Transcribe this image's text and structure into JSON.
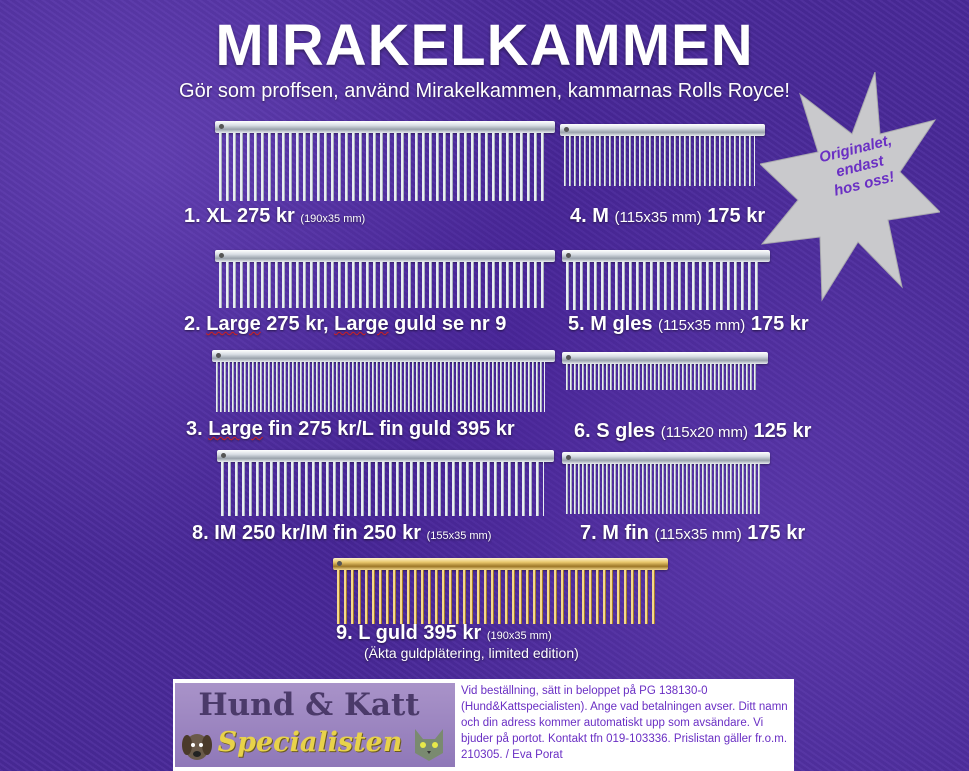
{
  "title": "MIRAKELKAMMEN",
  "subtitle": "Gör som proffsen, använd Mirakelkammen, kammarnas Rolls Royce!",
  "badge": {
    "text_lines": [
      "Originalet,",
      "endast",
      "hos oss!"
    ],
    "fill_color": "#c9c9cc",
    "text_color": "#6a2fc4"
  },
  "products": {
    "p1": {
      "name": "1. XL",
      "price": "275 kr",
      "size": "(190x35 mm)"
    },
    "p4": {
      "name": "4. M",
      "size": "(115x35 mm)",
      "price": "175 kr"
    },
    "p2": {
      "text_a": "2. ",
      "text_b": "Large",
      "text_c": " 275 kr, ",
      "text_d": "Large",
      "text_e": " guld se nr 9"
    },
    "p5": {
      "name": "5. M gles",
      "size": "(115x35 mm)",
      "price": "175 kr"
    },
    "p3": {
      "text_a": "3. ",
      "text_b": "Large",
      "text_c": " fin 275 kr/L fin guld 395 kr"
    },
    "p6": {
      "name": "6. S gles",
      "size": "(115x20 mm)",
      "price": "125 kr"
    },
    "p8": {
      "name": "8. IM 250 kr/IM fin 250 kr",
      "size": "(155x35 mm)"
    },
    "p7": {
      "name": "7. M fin",
      "size": "(115x35 mm)",
      "price": "175 kr"
    },
    "p9": {
      "name": "9. L guld 395 kr",
      "size": "(190x35 mm)",
      "note": "(Äkta guldplätering, limited edition)"
    }
  },
  "footer": {
    "logo_top": "Hund & Katt",
    "logo_bottom": "Specialisten",
    "text": "Vid beställning, sätt in beloppet på PG 138130-0 (Hund&Kattspecialisten). Ange vad betalningen avser. Ditt namn och din adress kommer automatiskt upp som avsändare. Vi bjuder på portot. Kontakt tfn 019-103336. Prislistan gäller fr.o.m. 210305. / Eva Porat"
  },
  "colors": {
    "background": "#4a2a9a",
    "text": "#ffffff",
    "accent": "#6a2fc4",
    "logo_bg": "#9a84c2",
    "logo_gold": "#e8d24a"
  }
}
